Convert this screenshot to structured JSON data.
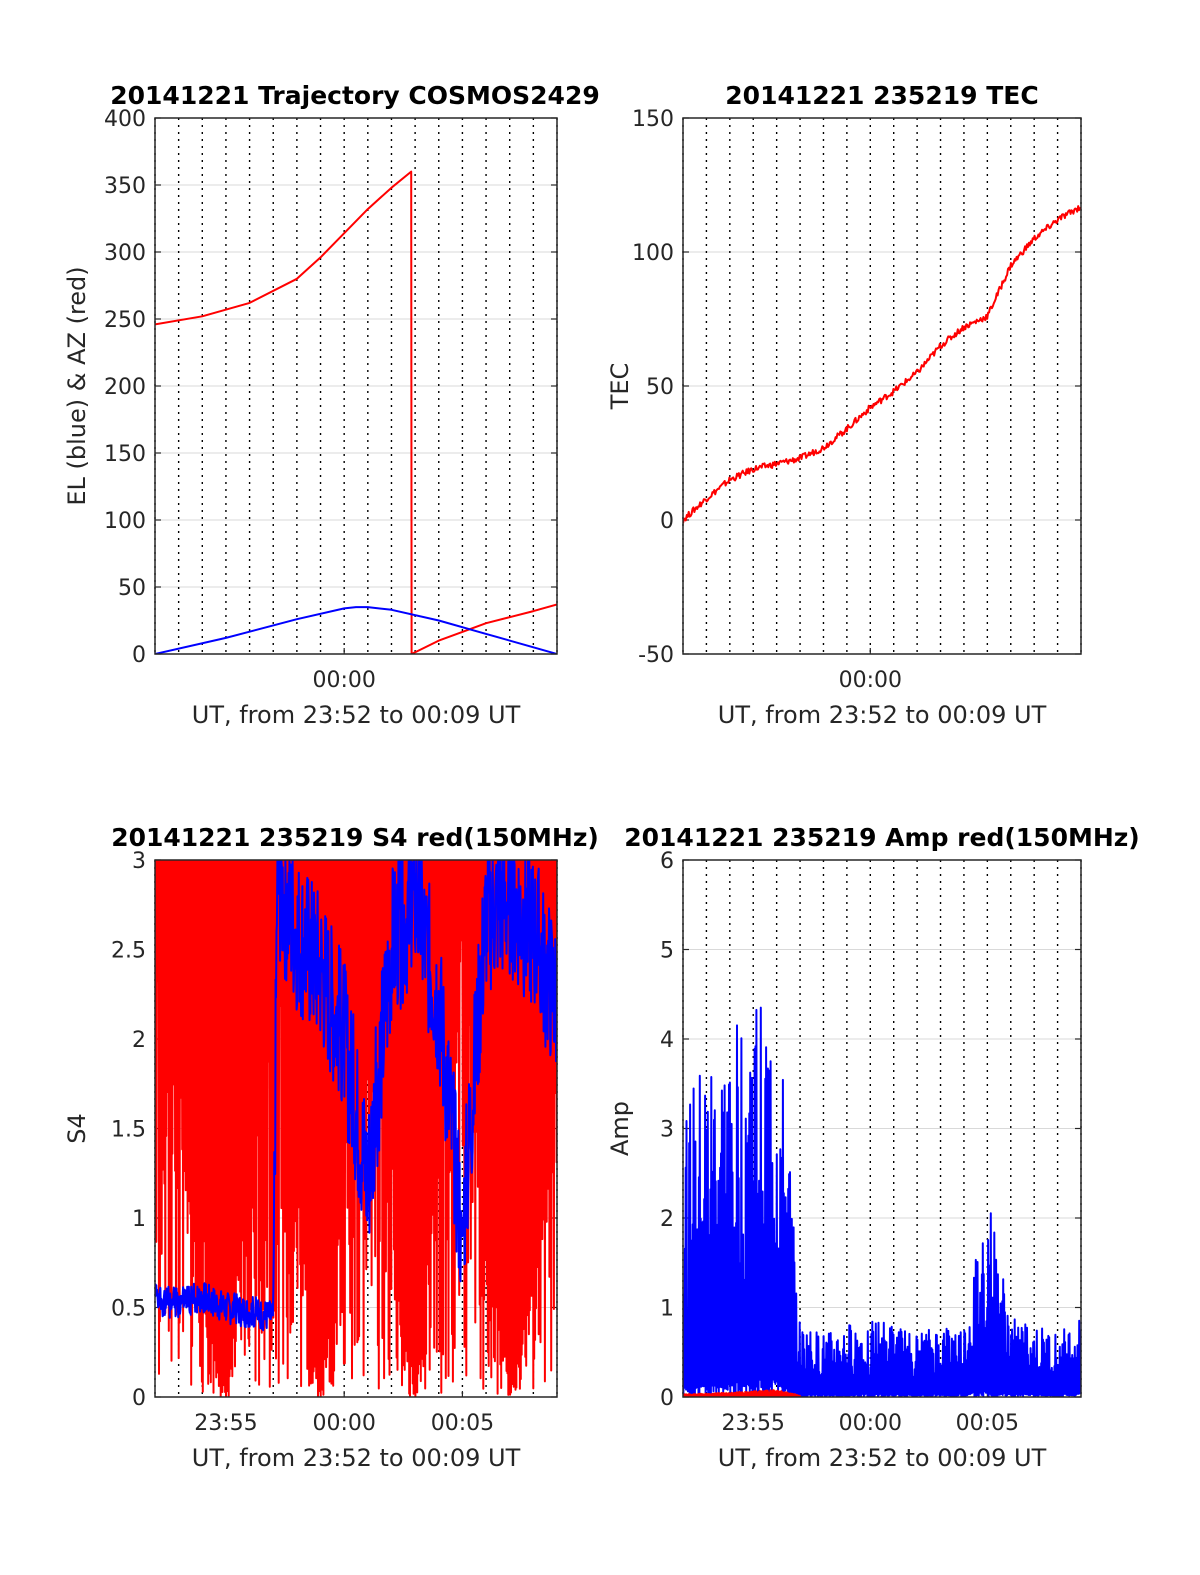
{
  "chart_data": [
    {
      "id": "trajectory",
      "type": "line",
      "title": "20141221 Trajectory COSMOS2429",
      "xlabel": "UT, from 23:52 to 00:09 UT",
      "ylabel": "EL (blue) & AZ (red)",
      "xlim": [
        "23:52",
        "00:09"
      ],
      "ylim": [
        0,
        400
      ],
      "yticks": [
        "0",
        "50",
        "100",
        "150",
        "200",
        "250",
        "300",
        "350",
        "400"
      ],
      "xticks": [
        {
          "t": "00:00",
          "label": "00:00"
        }
      ],
      "grid": true,
      "series": [
        {
          "color": "#ff0000",
          "x": [
            "23:52",
            "23:54",
            "23:56",
            "23:58",
            "23:59",
            "00:00",
            "00:01",
            "00:02",
            "00:02:50",
            "00:02:51",
            "00:04",
            "00:06",
            "00:08",
            "00:09"
          ],
          "y": [
            246,
            252,
            262,
            280,
            296,
            314,
            332,
            348,
            360,
            0,
            10,
            23,
            32,
            37
          ]
        },
        {
          "color": "#0000ff",
          "x": [
            "23:52",
            "23:55",
            "23:58",
            "00:00",
            "00:00:30",
            "00:01",
            "00:02",
            "00:04",
            "00:06",
            "00:08",
            "00:09"
          ],
          "y": [
            0,
            12,
            26,
            34,
            35,
            35,
            33,
            25,
            15,
            5,
            0
          ]
        }
      ]
    },
    {
      "id": "tec",
      "type": "line",
      "title": "20141221 235219 TEC",
      "xlabel": "UT, from 23:52 to 00:09 UT",
      "ylabel": "TEC",
      "xlim": [
        "23:52",
        "00:09"
      ],
      "ylim": [
        -50,
        150
      ],
      "yticks": [
        "-50",
        "0",
        "50",
        "100",
        "150"
      ],
      "xticks": [
        {
          "t": "00:00",
          "label": "00:00"
        }
      ],
      "grid": true,
      "series": [
        {
          "color": "#ff0000",
          "x": [
            "23:52",
            "23:53",
            "23:54",
            "23:55",
            "23:56",
            "23:57",
            "23:58",
            "23:59",
            "00:00",
            "00:01",
            "00:02",
            "00:03",
            "00:04",
            "00:05",
            "00:06",
            "00:07",
            "00:08",
            "00:09"
          ],
          "y": [
            0,
            8,
            15,
            19,
            21,
            23,
            27,
            34,
            42,
            48,
            55,
            65,
            72,
            76,
            95,
            105,
            112,
            117
          ]
        }
      ]
    },
    {
      "id": "s4",
      "type": "line",
      "title": "20141221 235219 S4 red(150MHz)",
      "xlabel": "UT, from 23:52 to 00:09 UT",
      "ylabel": "S4",
      "xlim": [
        "23:52",
        "00:09"
      ],
      "ylim": [
        0,
        3
      ],
      "yticks": [
        "0",
        "0.5",
        "1",
        "1.5",
        "2",
        "2.5",
        "3"
      ],
      "xticks": [
        {
          "t": "23:55",
          "label": "23:55"
        },
        {
          "t": "00:00",
          "label": "00:00"
        },
        {
          "t": "00:05",
          "label": "00:05"
        }
      ],
      "grid": true,
      "series": [
        {
          "color": "#ff0000",
          "x": [
            "23:52",
            "23:55",
            "23:57",
            "23:59",
            "00:01",
            "00:03",
            "00:05",
            "00:07",
            "00:09"
          ],
          "y": [
            3,
            0,
            3,
            0,
            3,
            0,
            3,
            0,
            2
          ]
        },
        {
          "color": "#0000ff",
          "x": [
            "23:52",
            "23:53",
            "23:54",
            "23:55",
            "23:57",
            "23:57:10",
            "23:58",
            "23:59",
            "00:00",
            "00:01",
            "00:02",
            "00:03",
            "00:04",
            "00:05",
            "00:06",
            "00:07",
            "00:08",
            "00:09"
          ],
          "y": [
            0.55,
            0.52,
            0.56,
            0.5,
            0.45,
            2.9,
            2.6,
            2.4,
            2.0,
            1.2,
            2.5,
            2.8,
            2.2,
            0.9,
            2.7,
            2.8,
            2.6,
            2.2
          ]
        }
      ]
    },
    {
      "id": "amp",
      "type": "line",
      "title": "20141221 235219 Amp red(150MHz)",
      "xlabel": "UT, from 23:52 to 00:09 UT",
      "ylabel": "Amp",
      "xlim": [
        "23:52",
        "00:09"
      ],
      "ylim": [
        0,
        6
      ],
      "yticks": [
        "0",
        "1",
        "2",
        "3",
        "4",
        "5",
        "6"
      ],
      "xticks": [
        {
          "t": "23:55",
          "label": "23:55"
        },
        {
          "t": "00:00",
          "label": "00:00"
        },
        {
          "t": "00:05",
          "label": "00:05"
        }
      ],
      "grid": true,
      "series": [
        {
          "color": "#0000ff",
          "x": [
            "23:52",
            "23:53",
            "23:54",
            "23:55",
            "23:56",
            "23:56:30",
            "23:57",
            "23:58",
            "23:59",
            "00:00",
            "00:01",
            "00:02",
            "00:03",
            "00:04",
            "00:05",
            "00:06",
            "00:07",
            "00:08",
            "00:09"
          ],
          "y": [
            3.2,
            3.8,
            4.0,
            4.6,
            4.2,
            3.0,
            0.8,
            0.7,
            0.8,
            0.9,
            0.8,
            0.7,
            0.8,
            0.8,
            2.3,
            0.9,
            0.8,
            0.7,
            0.9
          ]
        },
        {
          "color": "#ff0000",
          "x": [
            "23:52",
            "23:54",
            "23:56",
            "23:57"
          ],
          "y": [
            0.03,
            0.05,
            0.08,
            0.02
          ]
        }
      ]
    }
  ]
}
